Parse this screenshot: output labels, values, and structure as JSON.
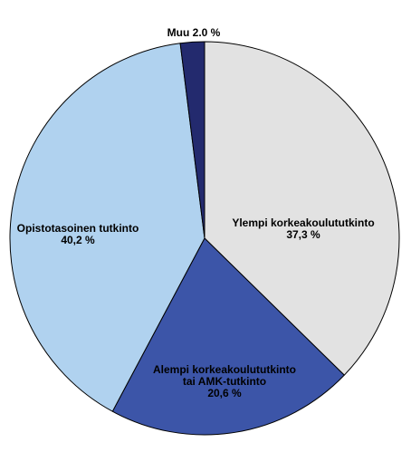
{
  "chart_data": {
    "type": "pie",
    "title": "",
    "slices": [
      {
        "label_lines": [
          "Ylempi korkeakoulututkinto",
          "37,3 %"
        ],
        "value": 37.3,
        "color": "#e2e2e2"
      },
      {
        "label_lines": [
          "Alempi korkeakoulututkinto",
          "tai AMK-tutkinto",
          "20,6 %"
        ],
        "value": 20.6,
        "color": "#3c55a8"
      },
      {
        "label_lines": [
          "Opistotasoinen tutkinto",
          "40,2 %"
        ],
        "value": 40.2,
        "color": "#b0d2ef"
      },
      {
        "label_lines": [
          "Muu 2.0 %"
        ],
        "value": 2.0,
        "color": "#232a6e"
      }
    ],
    "start_angle_deg": 0,
    "direction": "clockwise"
  }
}
